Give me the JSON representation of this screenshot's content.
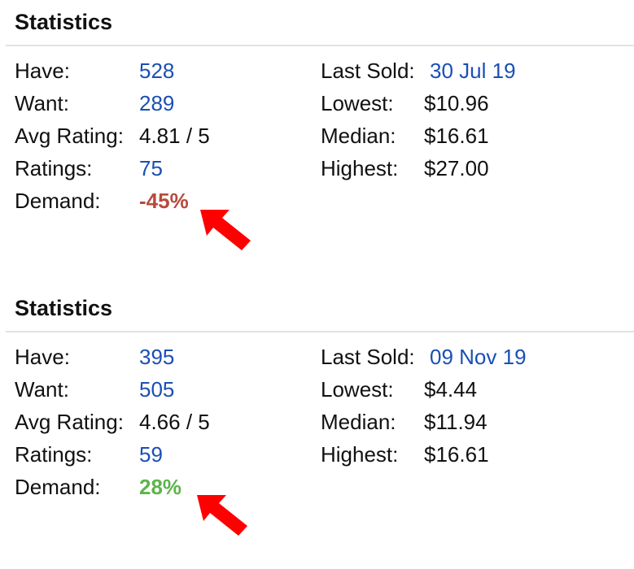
{
  "blocks": [
    {
      "title": "Statistics",
      "left": [
        {
          "label": "Have:",
          "value": "528"
        },
        {
          "label": "Want:",
          "value": "289"
        },
        {
          "label": "Avg Rating:",
          "value": "4.81 / 5"
        },
        {
          "label": "Ratings:",
          "value": "75"
        },
        {
          "label": "Demand:",
          "value": "-45%"
        }
      ],
      "right": [
        {
          "label": "Last Sold:",
          "value": "30 Jul 19"
        },
        {
          "label": "Lowest:",
          "value": "$10.96"
        },
        {
          "label": "Median:",
          "value": "$16.61"
        },
        {
          "label": "Highest:",
          "value": "$27.00"
        }
      ]
    },
    {
      "title": "Statistics",
      "left": [
        {
          "label": "Have:",
          "value": "395"
        },
        {
          "label": "Want:",
          "value": "505"
        },
        {
          "label": "Avg Rating:",
          "value": "4.66 / 5"
        },
        {
          "label": "Ratings:",
          "value": "59"
        },
        {
          "label": "Demand:",
          "value": "28%"
        }
      ],
      "right": [
        {
          "label": "Last Sold:",
          "value": "09 Nov 19"
        },
        {
          "label": "Lowest:",
          "value": "$4.44"
        },
        {
          "label": "Median:",
          "value": "$11.94"
        },
        {
          "label": "Highest:",
          "value": "$16.61"
        }
      ]
    }
  ],
  "colors": {
    "link": "#1a4fb5",
    "demand_negative": "#b84a3e",
    "demand_positive": "#5cb54a",
    "annotation_arrow": "#ff0000"
  },
  "icons": {
    "annotation": "red-arrow-icon"
  }
}
